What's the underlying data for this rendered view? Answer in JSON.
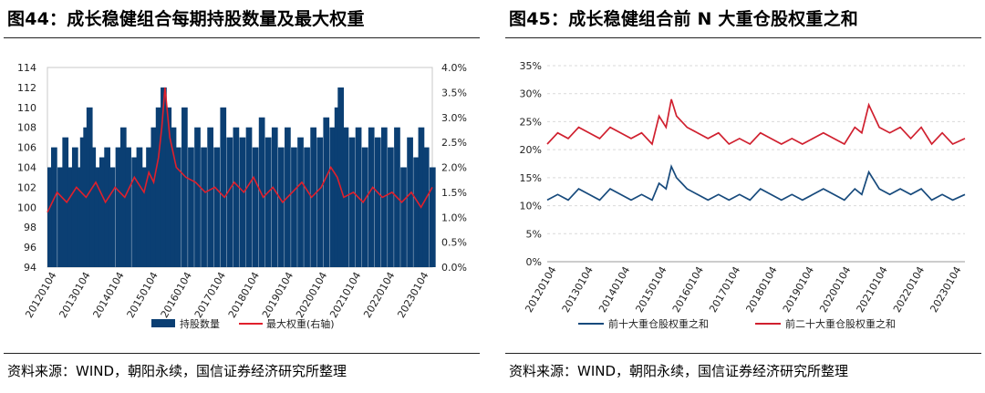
{
  "charts": [
    {
      "title": "图44：成长稳健组合每期持股数量及最大权重",
      "source": "资料来源：WIND，朝阳永续，国信证券经济研究所整理"
    },
    {
      "title": "图45：成长稳健组合前 N 大重仓股权重之和",
      "source": "资料来源：WIND，朝阳永续，国信证券经济研究所整理"
    }
  ],
  "chart_data": [
    {
      "type": "bar",
      "title": "图44：成长稳健组合每期持股数量及最大权重",
      "x_tick_labels": [
        "20120104",
        "20130104",
        "20140104",
        "20150104",
        "20160104",
        "20170104",
        "20180104",
        "20190104",
        "20200104",
        "20210104",
        "20220104",
        "20230104"
      ],
      "x_range": [
        2012.0,
        2023.95
      ],
      "y_left": {
        "range": [
          94,
          114
        ],
        "ticks": [
          "94",
          "96",
          "98",
          "100",
          "102",
          "104",
          "106",
          "108",
          "110",
          "112",
          "114"
        ]
      },
      "y_right": {
        "range": [
          0.0,
          4.0
        ],
        "ticks": [
          "0.0%",
          "0.5%",
          "1.0%",
          "1.5%",
          "2.0%",
          "2.5%",
          "3.0%",
          "3.5%",
          "4.0%"
        ]
      },
      "series": [
        {
          "name": "持股数量",
          "type": "bar",
          "axis": "left",
          "color": "#0b3f73",
          "x": [
            2012.0,
            2012.2,
            2012.4,
            2012.55,
            2012.7,
            2012.85,
            2013.0,
            2013.1,
            2013.2,
            2013.3,
            2013.4,
            2013.55,
            2013.7,
            2013.85,
            2014.0,
            2014.2,
            2014.35,
            2014.5,
            2014.7,
            2014.85,
            2015.0,
            2015.15,
            2015.3,
            2015.45,
            2015.6,
            2015.75,
            2015.9,
            2016.05,
            2016.25,
            2016.45,
            2016.65,
            2016.85,
            2017.05,
            2017.25,
            2017.45,
            2017.65,
            2017.85,
            2018.05,
            2018.25,
            2018.45,
            2018.65,
            2018.85,
            2019.05,
            2019.25,
            2019.45,
            2019.65,
            2019.85,
            2020.05,
            2020.25,
            2020.45,
            2020.65,
            2020.85,
            2021.0,
            2021.1,
            2021.25,
            2021.45,
            2021.65,
            2021.85,
            2022.05,
            2022.25,
            2022.45,
            2022.65,
            2022.85,
            2023.05,
            2023.25,
            2023.45,
            2023.6,
            2023.75,
            2023.95
          ],
          "values": [
            104,
            106,
            104,
            107,
            104,
            106,
            104,
            107,
            108,
            110,
            106,
            104,
            105,
            106,
            104,
            106,
            108,
            106,
            105,
            106,
            104,
            106,
            108,
            110,
            112,
            110,
            108,
            106,
            110,
            106,
            108,
            106,
            108,
            106,
            110,
            107,
            108,
            107,
            108,
            106,
            109,
            107,
            108,
            106,
            108,
            106,
            107,
            106,
            108,
            107,
            109,
            108,
            110,
            112,
            108,
            107,
            108,
            106,
            108,
            107,
            108,
            106,
            108,
            104,
            107,
            105,
            108,
            106,
            104
          ]
        },
        {
          "name": "最大权重(右轴)",
          "type": "line",
          "axis": "right",
          "color": "#e0202c",
          "x": [
            2012.0,
            2012.3,
            2012.6,
            2012.9,
            2013.2,
            2013.5,
            2013.8,
            2014.1,
            2014.4,
            2014.7,
            2015.0,
            2015.15,
            2015.3,
            2015.45,
            2015.55,
            2015.65,
            2015.8,
            2016.0,
            2016.3,
            2016.6,
            2016.9,
            2017.2,
            2017.5,
            2017.8,
            2018.1,
            2018.4,
            2018.7,
            2019.0,
            2019.3,
            2019.6,
            2019.9,
            2020.2,
            2020.5,
            2020.8,
            2021.0,
            2021.2,
            2021.5,
            2021.8,
            2022.1,
            2022.4,
            2022.7,
            2023.0,
            2023.3,
            2023.6,
            2023.95
          ],
          "values": [
            1.1,
            1.5,
            1.3,
            1.6,
            1.4,
            1.7,
            1.3,
            1.6,
            1.4,
            1.8,
            1.5,
            1.9,
            1.7,
            2.2,
            2.8,
            3.6,
            2.6,
            2.0,
            1.8,
            1.7,
            1.5,
            1.6,
            1.4,
            1.7,
            1.5,
            1.8,
            1.4,
            1.6,
            1.3,
            1.5,
            1.7,
            1.4,
            1.6,
            2.0,
            1.8,
            1.4,
            1.5,
            1.3,
            1.6,
            1.4,
            1.5,
            1.3,
            1.5,
            1.2,
            1.6
          ]
        }
      ]
    },
    {
      "type": "line",
      "title": "图45：成长稳健组合前 N 大重仓股权重之和",
      "x_tick_labels": [
        "20120104",
        "20130104",
        "20140104",
        "20150104",
        "20160104",
        "20170104",
        "20180104",
        "20190104",
        "20200104",
        "20210104",
        "20220104",
        "20230104"
      ],
      "x_range": [
        2012.0,
        2023.95
      ],
      "y": {
        "range": [
          0,
          35
        ],
        "ticks": [
          "0%",
          "5%",
          "10%",
          "15%",
          "20%",
          "25%",
          "30%",
          "35%"
        ]
      },
      "series": [
        {
          "name": "前十大重仓股权重之和",
          "color": "#174a7c",
          "x": [
            2012.0,
            2012.3,
            2012.6,
            2012.9,
            2013.2,
            2013.5,
            2013.8,
            2014.1,
            2014.4,
            2014.7,
            2015.0,
            2015.2,
            2015.4,
            2015.55,
            2015.7,
            2015.85,
            2016.0,
            2016.3,
            2016.6,
            2016.9,
            2017.2,
            2017.5,
            2017.8,
            2018.1,
            2018.4,
            2018.7,
            2019.0,
            2019.3,
            2019.6,
            2019.9,
            2020.2,
            2020.5,
            2020.8,
            2021.0,
            2021.2,
            2021.5,
            2021.8,
            2022.1,
            2022.4,
            2022.7,
            2023.0,
            2023.3,
            2023.6,
            2023.95
          ],
          "values": [
            11,
            12,
            11,
            13,
            12,
            11,
            13,
            12,
            11,
            12,
            11,
            14,
            13,
            17,
            15,
            14,
            13,
            12,
            11,
            12,
            11,
            12,
            11,
            13,
            12,
            11,
            12,
            11,
            12,
            13,
            12,
            11,
            13,
            12,
            16,
            13,
            12,
            13,
            12,
            13,
            11,
            12,
            11,
            12
          ]
        },
        {
          "name": "前二十大重仓股权重之和",
          "color": "#d0202f",
          "x": [
            2012.0,
            2012.3,
            2012.6,
            2012.9,
            2013.2,
            2013.5,
            2013.8,
            2014.1,
            2014.4,
            2014.7,
            2015.0,
            2015.2,
            2015.4,
            2015.55,
            2015.7,
            2015.85,
            2016.0,
            2016.3,
            2016.6,
            2016.9,
            2017.2,
            2017.5,
            2017.8,
            2018.1,
            2018.4,
            2018.7,
            2019.0,
            2019.3,
            2019.6,
            2019.9,
            2020.2,
            2020.5,
            2020.8,
            2021.0,
            2021.2,
            2021.5,
            2021.8,
            2022.1,
            2022.4,
            2022.7,
            2023.0,
            2023.3,
            2023.6,
            2023.95
          ],
          "values": [
            21,
            23,
            22,
            24,
            23,
            22,
            24,
            23,
            22,
            23,
            21,
            26,
            24,
            29,
            26,
            25,
            24,
            23,
            22,
            23,
            21,
            22,
            21,
            23,
            22,
            21,
            22,
            21,
            22,
            23,
            22,
            21,
            24,
            23,
            28,
            24,
            23,
            24,
            22,
            24,
            21,
            23,
            21,
            22
          ]
        }
      ]
    }
  ]
}
